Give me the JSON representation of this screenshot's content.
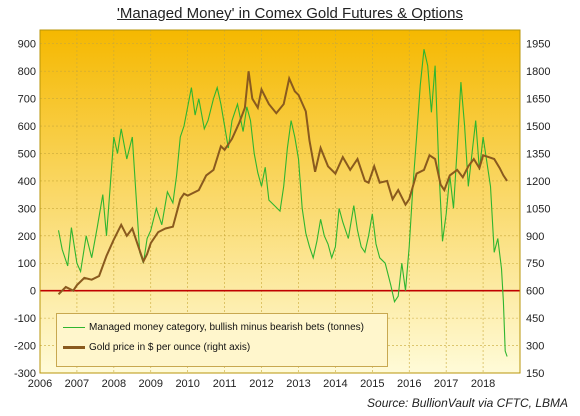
{
  "title": "'Managed Money' in Comex Gold Futures & Options",
  "source": "Source: BullionVault via CFTC, LBMA",
  "colors": {
    "managed_money": "#2fb52f",
    "gold_price": "#8a5a1e",
    "zero_line": "#c00000",
    "bg_top": "#f5b800",
    "bg_bottom": "#fffbd8"
  },
  "chart_data": {
    "type": "line",
    "title": "'Managed Money' in Comex Gold Futures & Options",
    "x_range": [
      2006,
      2019
    ],
    "x_ticks": [
      "2006",
      "2007",
      "2008",
      "2009",
      "2010",
      "2011",
      "2012",
      "2013",
      "2014",
      "2015",
      "2016",
      "2017",
      "2018"
    ],
    "y_left": {
      "range": [
        -300,
        950
      ],
      "ticks": [
        "-300",
        "-200",
        "-100",
        "0",
        "100",
        "200",
        "300",
        "400",
        "500",
        "600",
        "700",
        "800",
        "900"
      ]
    },
    "y_right": {
      "range": [
        150,
        2025
      ],
      "ticks": [
        "150",
        "300",
        "450",
        "600",
        "750",
        "900",
        "1050",
        "1200",
        "1350",
        "1500",
        "1650",
        "1800",
        "1950"
      ]
    },
    "grid": true,
    "legend_position": "bottom-left",
    "series": [
      {
        "name": "Managed money category, bullish minus bearish bets (tonnes)",
        "axis": "left",
        "points": [
          [
            2006.5,
            220
          ],
          [
            2006.6,
            150
          ],
          [
            2006.75,
            90
          ],
          [
            2006.85,
            230
          ],
          [
            2007.0,
            100
          ],
          [
            2007.1,
            70
          ],
          [
            2007.25,
            200
          ],
          [
            2007.4,
            120
          ],
          [
            2007.55,
            230
          ],
          [
            2007.7,
            350
          ],
          [
            2007.8,
            200
          ],
          [
            2007.9,
            380
          ],
          [
            2008.0,
            560
          ],
          [
            2008.1,
            500
          ],
          [
            2008.2,
            590
          ],
          [
            2008.35,
            480
          ],
          [
            2008.5,
            560
          ],
          [
            2008.6,
            350
          ],
          [
            2008.7,
            140
          ],
          [
            2008.8,
            100
          ],
          [
            2008.9,
            190
          ],
          [
            2009.0,
            220
          ],
          [
            2009.15,
            300
          ],
          [
            2009.3,
            240
          ],
          [
            2009.45,
            360
          ],
          [
            2009.6,
            320
          ],
          [
            2009.7,
            420
          ],
          [
            2009.8,
            560
          ],
          [
            2009.9,
            600
          ],
          [
            2010.0,
            670
          ],
          [
            2010.1,
            740
          ],
          [
            2010.2,
            640
          ],
          [
            2010.3,
            700
          ],
          [
            2010.45,
            590
          ],
          [
            2010.55,
            620
          ],
          [
            2010.7,
            700
          ],
          [
            2010.8,
            740
          ],
          [
            2010.9,
            680
          ],
          [
            2011.0,
            600
          ],
          [
            2011.1,
            520
          ],
          [
            2011.2,
            620
          ],
          [
            2011.35,
            680
          ],
          [
            2011.5,
            580
          ],
          [
            2011.6,
            670
          ],
          [
            2011.7,
            620
          ],
          [
            2011.8,
            500
          ],
          [
            2011.9,
            430
          ],
          [
            2012.0,
            380
          ],
          [
            2012.1,
            450
          ],
          [
            2012.2,
            330
          ],
          [
            2012.35,
            310
          ],
          [
            2012.5,
            290
          ],
          [
            2012.6,
            380
          ],
          [
            2012.7,
            520
          ],
          [
            2012.8,
            620
          ],
          [
            2012.9,
            560
          ],
          [
            2013.0,
            480
          ],
          [
            2013.1,
            300
          ],
          [
            2013.2,
            210
          ],
          [
            2013.3,
            160
          ],
          [
            2013.4,
            120
          ],
          [
            2013.5,
            180
          ],
          [
            2013.6,
            260
          ],
          [
            2013.7,
            200
          ],
          [
            2013.8,
            170
          ],
          [
            2013.9,
            120
          ],
          [
            2014.0,
            160
          ],
          [
            2014.1,
            300
          ],
          [
            2014.2,
            250
          ],
          [
            2014.35,
            190
          ],
          [
            2014.5,
            310
          ],
          [
            2014.6,
            220
          ],
          [
            2014.7,
            160
          ],
          [
            2014.8,
            140
          ],
          [
            2014.9,
            200
          ],
          [
            2015.0,
            280
          ],
          [
            2015.1,
            170
          ],
          [
            2015.2,
            120
          ],
          [
            2015.35,
            100
          ],
          [
            2015.5,
            20
          ],
          [
            2015.6,
            -40
          ],
          [
            2015.7,
            -20
          ],
          [
            2015.8,
            100
          ],
          [
            2015.9,
            0
          ],
          [
            2016.0,
            160
          ],
          [
            2016.1,
            380
          ],
          [
            2016.2,
            560
          ],
          [
            2016.3,
            750
          ],
          [
            2016.4,
            880
          ],
          [
            2016.5,
            820
          ],
          [
            2016.6,
            650
          ],
          [
            2016.7,
            820
          ],
          [
            2016.8,
            450
          ],
          [
            2016.9,
            180
          ],
          [
            2017.0,
            280
          ],
          [
            2017.1,
            420
          ],
          [
            2017.2,
            300
          ],
          [
            2017.3,
            520
          ],
          [
            2017.4,
            760
          ],
          [
            2017.5,
            600
          ],
          [
            2017.6,
            380
          ],
          [
            2017.7,
            500
          ],
          [
            2017.8,
            620
          ],
          [
            2017.9,
            440
          ],
          [
            2018.0,
            560
          ],
          [
            2018.1,
            470
          ],
          [
            2018.2,
            380
          ],
          [
            2018.3,
            140
          ],
          [
            2018.4,
            190
          ],
          [
            2018.5,
            80
          ],
          [
            2018.55,
            -40
          ],
          [
            2018.6,
            -220
          ],
          [
            2018.65,
            -240
          ]
        ]
      },
      {
        "name": "Gold price in $ per ounce (right axis)",
        "axis": "right",
        "points": [
          [
            2006.5,
            580
          ],
          [
            2006.7,
            620
          ],
          [
            2006.9,
            600
          ],
          [
            2007.0,
            630
          ],
          [
            2007.2,
            670
          ],
          [
            2007.4,
            660
          ],
          [
            2007.6,
            680
          ],
          [
            2007.8,
            790
          ],
          [
            2008.0,
            880
          ],
          [
            2008.2,
            960
          ],
          [
            2008.35,
            900
          ],
          [
            2008.5,
            940
          ],
          [
            2008.65,
            850
          ],
          [
            2008.8,
            760
          ],
          [
            2008.9,
            800
          ],
          [
            2009.0,
            860
          ],
          [
            2009.2,
            920
          ],
          [
            2009.4,
            940
          ],
          [
            2009.6,
            950
          ],
          [
            2009.8,
            1100
          ],
          [
            2009.9,
            1130
          ],
          [
            2010.0,
            1120
          ],
          [
            2010.3,
            1150
          ],
          [
            2010.5,
            1230
          ],
          [
            2010.7,
            1260
          ],
          [
            2010.9,
            1390
          ],
          [
            2011.0,
            1370
          ],
          [
            2011.2,
            1430
          ],
          [
            2011.4,
            1520
          ],
          [
            2011.55,
            1600
          ],
          [
            2011.65,
            1800
          ],
          [
            2011.75,
            1650
          ],
          [
            2011.9,
            1600
          ],
          [
            2012.0,
            1700
          ],
          [
            2012.2,
            1620
          ],
          [
            2012.4,
            1570
          ],
          [
            2012.6,
            1620
          ],
          [
            2012.75,
            1760
          ],
          [
            2012.9,
            1690
          ],
          [
            2013.0,
            1670
          ],
          [
            2013.2,
            1580
          ],
          [
            2013.3,
            1420
          ],
          [
            2013.45,
            1250
          ],
          [
            2013.6,
            1380
          ],
          [
            2013.8,
            1280
          ],
          [
            2014.0,
            1240
          ],
          [
            2014.2,
            1330
          ],
          [
            2014.4,
            1260
          ],
          [
            2014.6,
            1320
          ],
          [
            2014.8,
            1200
          ],
          [
            2014.9,
            1190
          ],
          [
            2015.05,
            1280
          ],
          [
            2015.2,
            1190
          ],
          [
            2015.4,
            1200
          ],
          [
            2015.55,
            1100
          ],
          [
            2015.7,
            1150
          ],
          [
            2015.9,
            1070
          ],
          [
            2016.0,
            1100
          ],
          [
            2016.2,
            1240
          ],
          [
            2016.4,
            1260
          ],
          [
            2016.55,
            1340
          ],
          [
            2016.7,
            1320
          ],
          [
            2016.85,
            1180
          ],
          [
            2016.95,
            1150
          ],
          [
            2017.1,
            1230
          ],
          [
            2017.3,
            1260
          ],
          [
            2017.45,
            1220
          ],
          [
            2017.6,
            1280
          ],
          [
            2017.75,
            1320
          ],
          [
            2017.9,
            1270
          ],
          [
            2018.0,
            1340
          ],
          [
            2018.15,
            1330
          ],
          [
            2018.3,
            1320
          ],
          [
            2018.45,
            1270
          ],
          [
            2018.55,
            1230
          ],
          [
            2018.65,
            1200
          ]
        ]
      }
    ]
  }
}
